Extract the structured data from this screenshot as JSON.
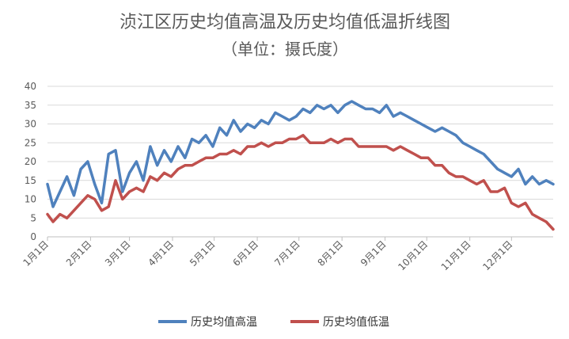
{
  "chart_data": {
    "type": "line",
    "title": "浈江区历史均值高温及历史均值低温折线图",
    "subtitle": "（单位：摄氏度）",
    "xlabel": "",
    "ylabel": "",
    "ylim": [
      0,
      40
    ],
    "yticks": [
      0,
      5,
      10,
      15,
      20,
      25,
      30,
      35,
      40
    ],
    "x_tick_labels": [
      "1月1日",
      "2月1日",
      "3月1日",
      "4月1日",
      "5月1日",
      "6月1日",
      "7月1日",
      "8月1日",
      "9月1日",
      "10月1日",
      "11月1日",
      "12月1日"
    ],
    "x_tick_day": [
      1,
      32,
      60,
      91,
      121,
      152,
      182,
      213,
      244,
      274,
      305,
      335
    ],
    "x_days_total": 365,
    "grid": true,
    "legend": "bottom",
    "series": [
      {
        "name": "历史均值高温",
        "color": "#4f81bd",
        "x": [
          1,
          5,
          10,
          15,
          20,
          25,
          30,
          35,
          40,
          45,
          50,
          55,
          60,
          65,
          70,
          75,
          80,
          85,
          90,
          95,
          100,
          105,
          110,
          115,
          120,
          125,
          130,
          135,
          140,
          145,
          150,
          155,
          160,
          165,
          170,
          175,
          180,
          185,
          190,
          195,
          200,
          205,
          210,
          215,
          220,
          225,
          230,
          235,
          240,
          245,
          250,
          255,
          260,
          265,
          270,
          275,
          280,
          285,
          290,
          295,
          300,
          305,
          310,
          315,
          320,
          325,
          330,
          335,
          340,
          345,
          350,
          355,
          360,
          365
        ],
        "values": [
          14,
          8,
          12,
          16,
          11,
          18,
          20,
          14,
          9,
          22,
          23,
          12,
          17,
          20,
          15,
          24,
          19,
          23,
          20,
          24,
          21,
          26,
          25,
          27,
          24,
          29,
          27,
          31,
          28,
          30,
          29,
          31,
          30,
          33,
          32,
          31,
          32,
          34,
          33,
          35,
          34,
          35,
          33,
          35,
          36,
          35,
          34,
          34,
          33,
          35,
          32,
          33,
          32,
          31,
          30,
          29,
          28,
          29,
          28,
          27,
          25,
          24,
          23,
          22,
          20,
          18,
          17,
          16,
          18,
          14,
          16,
          14,
          15,
          14
        ]
      },
      {
        "name": "历史均值低温",
        "color": "#c0504d",
        "x": [
          1,
          5,
          10,
          15,
          20,
          25,
          30,
          35,
          40,
          45,
          50,
          55,
          60,
          65,
          70,
          75,
          80,
          85,
          90,
          95,
          100,
          105,
          110,
          115,
          120,
          125,
          130,
          135,
          140,
          145,
          150,
          155,
          160,
          165,
          170,
          175,
          180,
          185,
          190,
          195,
          200,
          205,
          210,
          215,
          220,
          225,
          230,
          235,
          240,
          245,
          250,
          255,
          260,
          265,
          270,
          275,
          280,
          285,
          290,
          295,
          300,
          305,
          310,
          315,
          320,
          325,
          330,
          335,
          340,
          345,
          350,
          355,
          360,
          365
        ],
        "values": [
          6,
          4,
          6,
          5,
          7,
          9,
          11,
          10,
          7,
          8,
          15,
          10,
          12,
          13,
          12,
          16,
          15,
          17,
          16,
          18,
          19,
          19,
          20,
          21,
          21,
          22,
          22,
          23,
          22,
          24,
          24,
          25,
          24,
          25,
          25,
          26,
          26,
          27,
          25,
          25,
          25,
          26,
          25,
          26,
          26,
          24,
          24,
          24,
          24,
          24,
          23,
          24,
          23,
          22,
          21,
          21,
          19,
          19,
          17,
          16,
          16,
          15,
          14,
          15,
          12,
          12,
          13,
          9,
          8,
          9,
          6,
          5,
          4,
          2
        ]
      }
    ]
  }
}
